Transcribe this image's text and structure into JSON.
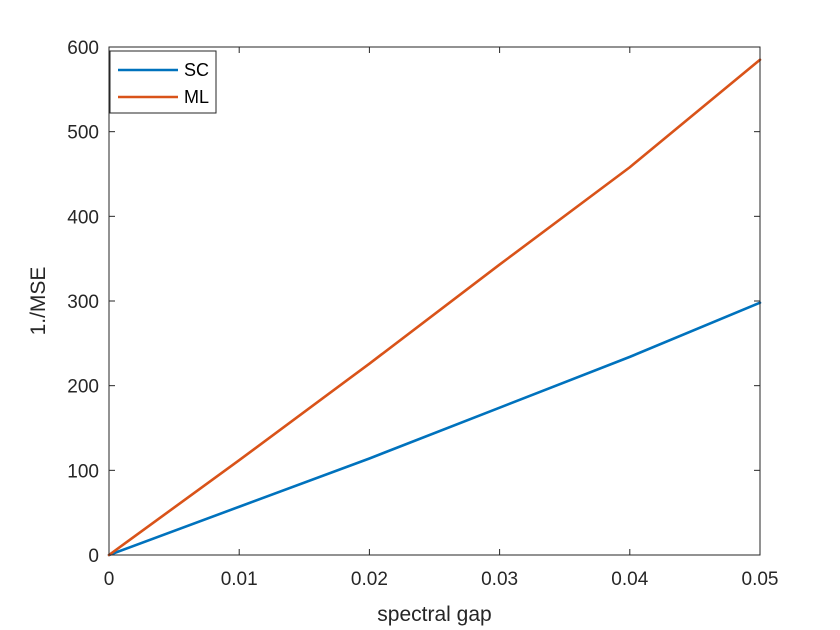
{
  "chart_data": {
    "type": "line",
    "title": "",
    "xlabel": "spectral gap",
    "ylabel": "1./MSE",
    "xlim": [
      0,
      0.05
    ],
    "ylim": [
      0,
      600
    ],
    "xticks": [
      0,
      0.01,
      0.02,
      0.03,
      0.04,
      0.05
    ],
    "xtick_labels": [
      "0",
      "0.01",
      "0.02",
      "0.03",
      "0.04",
      "0.05"
    ],
    "yticks": [
      0,
      100,
      200,
      300,
      400,
      500,
      600
    ],
    "ytick_labels": [
      "0",
      "100",
      "200",
      "300",
      "400",
      "500",
      "600"
    ],
    "grid": false,
    "legend_position": "top-left",
    "series": [
      {
        "name": "SC",
        "color": "#0072BD",
        "x": [
          0,
          0.01,
          0.02,
          0.03,
          0.04,
          0.05
        ],
        "y": [
          0,
          57,
          114,
          174,
          234,
          298
        ]
      },
      {
        "name": "ML",
        "color": "#D95319",
        "x": [
          0,
          0.01,
          0.02,
          0.03,
          0.04,
          0.05
        ],
        "y": [
          0,
          112,
          226,
          343,
          458,
          585
        ]
      }
    ]
  }
}
